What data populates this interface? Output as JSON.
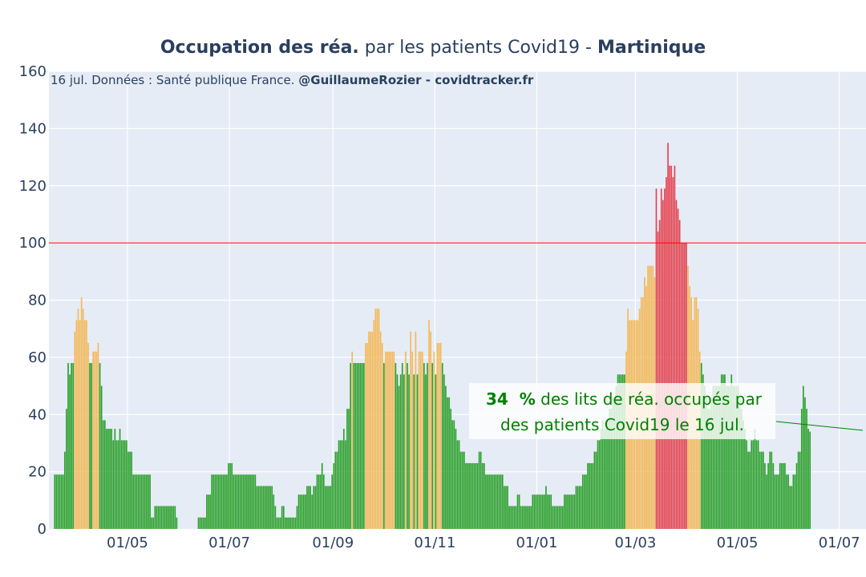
{
  "title": {
    "part1": "Occupation des réa.",
    "part2": " par les patients Covid19 - ",
    "part3": "Martinique"
  },
  "source": {
    "text": "16 jul. Données : Santé publique France. ",
    "handle": "@GuillaumeRozier - covidtracker.fr"
  },
  "annotation": {
    "value": "34",
    "pct": "  %",
    "line1_rest": " des lits de réa. occupés par",
    "line2": "des patients Covid19 le 16 jul."
  },
  "colors": {
    "plot_bg": "#e5ecf6",
    "green": "#2ca02c",
    "orange": "#f3b95a",
    "red": "#e3434f",
    "threshold": "#ff0000",
    "annotation": "#008000"
  },
  "chart_data": {
    "type": "bar",
    "x_start": "2020-03-18",
    "x_end": "2021-07-16",
    "x_range": [
      "2020-03-15",
      "2021-07-16"
    ],
    "ylim": [
      0,
      160
    ],
    "y_ticks": [
      0,
      20,
      40,
      60,
      80,
      100,
      120,
      140,
      160
    ],
    "x_ticks": [
      {
        "date": "2020-05-01",
        "label": "01/05"
      },
      {
        "date": "2020-07-01",
        "label": "01/07"
      },
      {
        "date": "2020-09-01",
        "label": "01/09"
      },
      {
        "date": "2020-11-01",
        "label": "01/11"
      },
      {
        "date": "2021-01-01",
        "label": "01/01"
      },
      {
        "date": "2021-03-01",
        "label": "01/03"
      },
      {
        "date": "2021-05-01",
        "label": "01/05"
      },
      {
        "date": "2021-07-01",
        "label": "01/07"
      }
    ],
    "threshold": 100,
    "color_rules": "green < 60 <= orange < 100 <= red",
    "last_value": 34,
    "values": [
      19,
      19,
      19,
      19,
      19,
      19,
      27,
      42,
      58,
      54,
      58,
      58,
      69,
      73,
      77,
      73,
      81,
      77,
      73,
      73,
      65,
      58,
      58,
      62,
      62,
      62,
      65,
      58,
      50,
      38,
      38,
      35,
      35,
      35,
      35,
      31,
      35,
      31,
      31,
      35,
      31,
      31,
      31,
      31,
      27,
      27,
      27,
      19,
      19,
      19,
      19,
      19,
      19,
      19,
      19,
      19,
      19,
      19,
      4,
      4,
      8,
      8,
      8,
      8,
      8,
      8,
      8,
      8,
      8,
      8,
      8,
      8,
      8,
      4,
      0,
      0,
      0,
      0,
      0,
      0,
      0,
      0,
      0,
      0,
      0,
      0,
      4,
      4,
      4,
      4,
      4,
      12,
      12,
      12,
      19,
      19,
      19,
      19,
      19,
      19,
      19,
      19,
      19,
      19,
      23,
      23,
      23,
      19,
      19,
      19,
      19,
      19,
      19,
      19,
      19,
      19,
      19,
      19,
      19,
      19,
      19,
      15,
      15,
      15,
      15,
      15,
      15,
      15,
      15,
      15,
      15,
      12,
      8,
      4,
      4,
      4,
      8,
      8,
      4,
      4,
      4,
      4,
      4,
      4,
      4,
      8,
      12,
      12,
      12,
      12,
      12,
      15,
      15,
      15,
      12,
      15,
      15,
      19,
      19,
      19,
      23,
      19,
      15,
      15,
      15,
      15,
      19,
      23,
      27,
      27,
      31,
      31,
      31,
      35,
      31,
      42,
      42,
      58,
      62,
      58,
      58,
      58,
      58,
      58,
      58,
      58,
      65,
      65,
      69,
      69,
      69,
      73,
      77,
      77,
      77,
      69,
      65,
      58,
      62,
      62,
      62,
      62,
      62,
      62,
      58,
      54,
      50,
      54,
      58,
      54,
      62,
      58,
      54,
      69,
      62,
      54,
      69,
      54,
      62,
      62,
      62,
      58,
      54,
      58,
      73,
      69,
      58,
      62,
      54,
      65,
      65,
      65,
      58,
      54,
      50,
      46,
      46,
      42,
      38,
      38,
      35,
      31,
      31,
      27,
      27,
      27,
      23,
      23,
      23,
      23,
      23,
      23,
      23,
      23,
      27,
      27,
      23,
      23,
      19,
      19,
      19,
      19,
      19,
      19,
      19,
      19,
      19,
      19,
      19,
      15,
      15,
      15,
      8,
      8,
      8,
      8,
      8,
      12,
      12,
      8,
      8,
      8,
      8,
      8,
      8,
      8,
      12,
      12,
      12,
      12,
      12,
      12,
      12,
      12,
      15,
      12,
      12,
      12,
      8,
      8,
      8,
      8,
      8,
      8,
      8,
      12,
      12,
      12,
      12,
      12,
      12,
      12,
      15,
      15,
      15,
      15,
      19,
      19,
      19,
      23,
      23,
      23,
      23,
      27,
      27,
      31,
      31,
      35,
      38,
      35,
      35,
      38,
      42,
      42,
      46,
      46,
      50,
      54,
      54,
      54,
      54,
      54,
      62,
      77,
      73,
      73,
      73,
      73,
      73,
      73,
      77,
      81,
      81,
      88,
      85,
      92,
      92,
      92,
      92,
      88,
      119,
      104,
      108,
      119,
      115,
      119,
      123,
      135,
      127,
      127,
      123,
      127,
      115,
      112,
      108,
      100,
      100,
      100,
      100,
      92,
      85,
      81,
      73,
      81,
      81,
      77,
      62,
      58,
      54,
      50,
      46,
      42,
      42,
      46,
      50,
      50,
      50,
      50,
      50,
      54,
      54,
      54,
      50,
      50,
      50,
      54,
      50,
      50,
      50,
      50,
      46,
      42,
      38,
      35,
      31,
      27,
      27,
      31,
      31,
      35,
      31,
      31,
      27,
      27,
      27,
      23,
      19,
      23,
      27,
      27,
      23,
      19,
      19,
      19,
      23,
      23,
      23,
      23,
      19,
      19,
      15,
      15,
      19,
      19,
      23,
      27,
      27,
      42,
      50,
      46,
      42,
      35,
      34
    ]
  }
}
